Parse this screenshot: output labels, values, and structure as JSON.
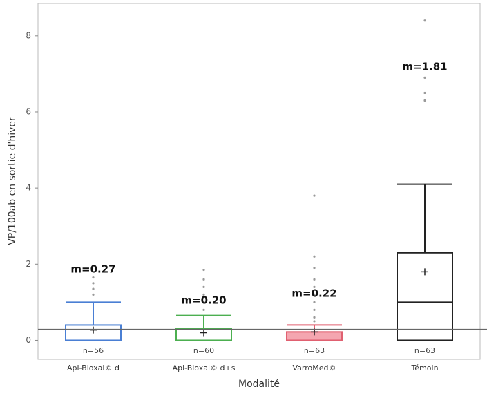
{
  "chart_data": {
    "type": "box",
    "y_label": "VP/100ab en sortie d'hiver",
    "x_label": "Modalité",
    "categories": [
      "Api-Bioxal© d",
      "Api-Bioxal© d+s",
      "VarroMed©",
      "Témoin"
    ],
    "ylim": [
      -0.5,
      8.85
    ],
    "yticks": [
      0,
      2,
      4,
      6,
      8
    ],
    "reference_line": 0.29,
    "boxes": [
      {
        "color": "#4a7fd4",
        "fill": "none",
        "min": 0,
        "q1": 0,
        "median": 0,
        "q3": 0.4,
        "max": 1.0,
        "mean": 0.27,
        "mean_label": "m=0.27",
        "n_label": "n=56",
        "outliers": [
          1.2,
          1.35,
          1.5,
          1.65
        ]
      },
      {
        "color": "#4caf50",
        "fill": "none",
        "min": 0,
        "q1": 0,
        "median": 0,
        "q3": 0.3,
        "max": 0.65,
        "mean": 0.2,
        "mean_label": "m=0.20",
        "n_label": "n=60",
        "outliers": [
          0.8,
          1.0,
          1.2,
          1.4,
          1.6,
          1.85
        ]
      },
      {
        "color": "#e06070",
        "fill": "#f4a6b0",
        "min": 0,
        "q1": 0,
        "median": 0,
        "q3": 0.22,
        "max": 0.4,
        "mean": 0.22,
        "mean_label": "m=0.22",
        "n_label": "n=63",
        "outliers": [
          0.5,
          0.6,
          0.8,
          1.0,
          1.2,
          1.4,
          1.6,
          1.9,
          2.2,
          3.8
        ]
      },
      {
        "color": "#222222",
        "fill": "none",
        "min": 0,
        "q1": 0,
        "median": 1.0,
        "q3": 2.3,
        "max": 4.1,
        "mean": 1.8,
        "mean_label": "m=1.81",
        "n_label": "n=63",
        "outliers": [
          6.3,
          6.5,
          6.9,
          8.4
        ]
      }
    ]
  }
}
